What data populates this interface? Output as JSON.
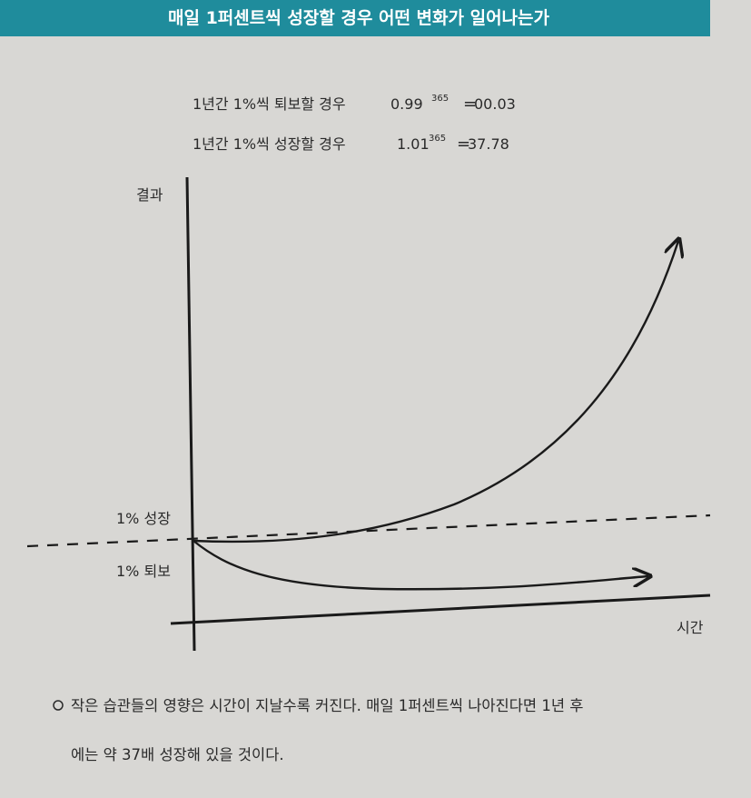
{
  "header": {
    "title": "매일 1퍼센트씩 성장할 경우 어떤 변화가 일어나는가"
  },
  "formulas": [
    {
      "label": "1년간 1%씩 퇴보할 경우",
      "base": "0.99",
      "exponent": "365",
      "equals": "=",
      "result": "00.03"
    },
    {
      "label": "1년간 1%씩 성장할 경우",
      "base": "1.01",
      "exponent": "365",
      "equals": "=",
      "result": "37.78"
    }
  ],
  "diagram": {
    "y_axis_label": "결과",
    "x_axis_label": "시간",
    "growth_label": "1% 성장",
    "decline_label": "1% 퇴보"
  },
  "caption": {
    "lines": [
      "작은 습관들의 영향은 시간이 지날수록 커진다. 매일 1퍼센트씩 나아진다면 1년 후",
      "에는 약 37배 성장해 있을 것이다."
    ]
  }
}
